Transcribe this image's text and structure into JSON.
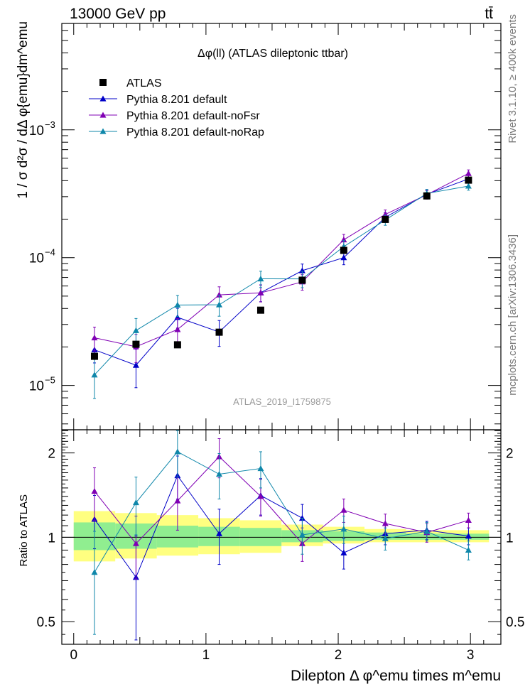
{
  "header": {
    "energy_label": "13000 GeV pp",
    "process_label": "tt̄"
  },
  "side_labels": {
    "rivet": "Rivet 3.1.10, ≥ 400k events",
    "mcplots": "mcplots.cern.ch [arXiv:1306.3436]"
  },
  "chart_data": {
    "type": "scatter",
    "title": "Δφ(ll) (ATLAS dileptonic ttbar)",
    "analysis_label": "ATLAS_2019_I1759875",
    "xlabel": "Dilepton Δ φ^emu times m^emu",
    "xlim": [
      -0.09,
      3.23
    ],
    "x_ticks": [
      0,
      1,
      2,
      3
    ],
    "main_panel": {
      "ylabel": "1 / σ d²σ / dΔ φ{emu}dm^emu",
      "yscale": "log",
      "ylim": [
        4.5e-06,
        0.0068
      ],
      "y_ticks": [
        {
          "value": 1e-05,
          "label": "10",
          "exp": "−5"
        },
        {
          "value": 0.0001,
          "label": "10",
          "exp": "−4"
        },
        {
          "value": 0.001,
          "label": "10",
          "exp": "−3"
        }
      ],
      "legend_position": "top-left",
      "series": [
        {
          "name": "ATLAS",
          "marker": "square",
          "color": "#000000",
          "x": [
            0.157,
            0.471,
            0.785,
            1.1,
            1.414,
            1.728,
            2.042,
            2.356,
            2.67,
            2.985
          ],
          "y": [
            1.69e-05,
            2.1e-05,
            2.08e-05,
            2.61e-05,
            3.88e-05,
            6.66e-05,
            0.000114,
            0.000199,
            0.000304,
            0.000404
          ]
        },
        {
          "name": "Pythia 8.201 default",
          "marker": "triangle",
          "color": "#0000c8",
          "x": [
            0.157,
            0.471,
            0.785,
            1.1,
            1.414,
            1.728,
            2.042,
            2.356,
            2.67,
            2.985
          ],
          "y": [
            1.9e-05,
            1.44e-05,
            3.41e-05,
            2.62e-05,
            5.32e-05,
            7.91e-05,
            0.0001,
            0.000207,
            0.000313,
            0.000413
          ],
          "err": [
            4e-06,
            4.8e-06,
            6e-06,
            6e-06,
            8e-06,
            1e-05,
            1.2e-05,
            1.8e-05,
            2.4e-05,
            2.8e-05
          ]
        },
        {
          "name": "Pythia 8.201 default-noFsr",
          "marker": "triangle",
          "color": "#8000b4",
          "x": [
            0.157,
            0.471,
            0.785,
            1.1,
            1.414,
            1.728,
            2.042,
            2.356,
            2.67,
            2.985
          ],
          "y": [
            2.36e-05,
            2.01e-05,
            2.74e-05,
            5.11e-05,
            5.3e-05,
            6.46e-05,
            0.000138,
            0.000218,
            0.000311,
            0.000456
          ],
          "err": [
            5e-06,
            5e-06,
            6e-06,
            8e-06,
            8e-06,
            9e-06,
            1.4e-05,
            1.8e-05,
            2.4e-05,
            3e-05
          ]
        },
        {
          "name": "Pythia 8.201 default-noRap",
          "marker": "triangle",
          "color": "#0f87aa",
          "x": [
            0.157,
            0.471,
            0.785,
            1.1,
            1.414,
            1.728,
            2.042,
            2.356,
            2.67,
            2.985
          ],
          "y": [
            1.21e-05,
            2.69e-05,
            4.26e-05,
            4.28e-05,
            6.83e-05,
            6.82e-05,
            0.000122,
            0.000197,
            0.000318,
            0.000363
          ],
          "err": [
            4.2e-06,
            6.5e-06,
            8e-06,
            8e-06,
            1e-05,
            1e-05,
            1.4e-05,
            1.8e-05,
            2.4e-05,
            2.6e-05
          ]
        }
      ]
    },
    "ratio_panel": {
      "ylabel": "Ratio to ATLAS",
      "yscale": "log",
      "ylim": [
        0.415,
        2.42
      ],
      "y_ticks": [
        {
          "value": 0.5,
          "label": "0.5"
        },
        {
          "value": 1,
          "label": "1"
        },
        {
          "value": 2,
          "label": "2"
        }
      ],
      "band_edges": [
        0,
        0.314,
        0.628,
        0.942,
        1.257,
        1.571,
        1.885,
        2.199,
        2.513,
        2.827,
        3.14
      ],
      "band_yellow": [
        [
          0.82,
          1.24
        ],
        [
          0.84,
          1.22
        ],
        [
          0.86,
          1.2
        ],
        [
          0.87,
          1.17
        ],
        [
          0.88,
          1.15
        ],
        [
          0.93,
          1.11
        ],
        [
          0.95,
          1.09
        ],
        [
          0.96,
          1.07
        ],
        [
          0.96,
          1.06
        ],
        [
          0.96,
          1.06
        ]
      ],
      "band_green": [
        [
          0.9,
          1.13
        ],
        [
          0.91,
          1.12
        ],
        [
          0.92,
          1.1
        ],
        [
          0.93,
          1.09
        ],
        [
          0.93,
          1.08
        ],
        [
          0.96,
          1.06
        ],
        [
          0.97,
          1.05
        ],
        [
          0.98,
          1.04
        ],
        [
          0.98,
          1.03
        ],
        [
          0.98,
          1.03
        ]
      ],
      "series": [
        {
          "name": "Pythia 8.201 default",
          "color": "#0000c8",
          "x": [
            0.157,
            0.471,
            0.785,
            1.1,
            1.414,
            1.728,
            2.042,
            2.356,
            2.67,
            2.985
          ],
          "y": [
            1.16,
            0.72,
            1.66,
            1.03,
            1.41,
            1.17,
            0.88,
            1.03,
            1.06,
            1.01
          ],
          "err": [
            0.25,
            0.29,
            0.29,
            0.23,
            0.21,
            0.14,
            0.11,
            0.09,
            0.08,
            0.07
          ]
        },
        {
          "name": "Pythia 8.201 default-noFsr",
          "color": "#8000b4",
          "x": [
            0.157,
            0.471,
            0.785,
            1.1,
            1.414,
            1.728,
            2.042,
            2.356,
            2.67,
            2.985
          ],
          "y": [
            1.46,
            0.95,
            1.35,
            1.94,
            1.4,
            0.95,
            1.25,
            1.12,
            1.04,
            1.15
          ],
          "err": [
            0.31,
            0.24,
            0.29,
            0.31,
            0.21,
            0.13,
            0.12,
            0.09,
            0.08,
            0.07
          ]
        },
        {
          "name": "Pythia 8.201 default-noRap",
          "color": "#0f87aa",
          "x": [
            0.157,
            0.471,
            0.785,
            1.1,
            1.414,
            1.728,
            2.042,
            2.356,
            2.67,
            2.985
          ],
          "y": [
            0.75,
            1.33,
            2.02,
            1.68,
            1.76,
            1.02,
            1.07,
            0.99,
            1.05,
            0.9
          ],
          "err": [
            0.3,
            0.31,
            0.38,
            0.31,
            0.26,
            0.15,
            0.12,
            0.09,
            0.08,
            0.07
          ]
        }
      ]
    }
  }
}
